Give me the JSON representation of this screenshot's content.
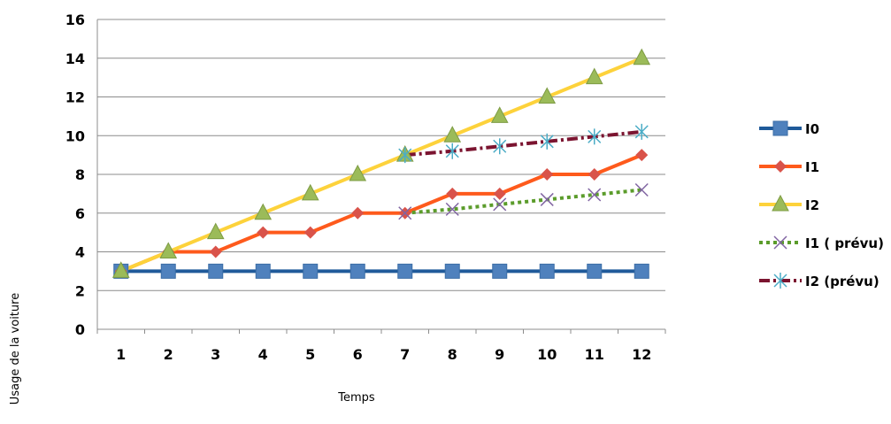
{
  "chart_data": {
    "type": "line",
    "title": "",
    "xlabel": "Temps",
    "ylabel": "Usage de la voiture",
    "ylim": [
      0,
      16
    ],
    "yticks": [
      "0",
      "2",
      "4",
      "6",
      "8",
      "10",
      "12",
      "14",
      "16"
    ],
    "categories": [
      "1",
      "2",
      "3",
      "4",
      "5",
      "6",
      "7",
      "8",
      "9",
      "10",
      "11",
      "12"
    ],
    "grid": "horizontal",
    "legend_position": "right",
    "series": [
      {
        "name": "I0",
        "color": "#1f5a9a",
        "marker_color": "#4f81bd",
        "marker": "square",
        "line_style": "solid",
        "x": [
          1,
          2,
          3,
          4,
          5,
          6,
          7,
          8,
          9,
          10,
          11,
          12
        ],
        "values": [
          3,
          3,
          3,
          3,
          3,
          3,
          3,
          3,
          3,
          3,
          3,
          3
        ]
      },
      {
        "name": "I1",
        "color": "#fe5a1c",
        "marker_color": "#d9534a",
        "marker": "diamond",
        "line_style": "solid",
        "x": [
          1,
          2,
          3,
          4,
          5,
          6,
          7,
          8,
          9,
          10,
          11,
          12
        ],
        "values": [
          3,
          4,
          4,
          5,
          5,
          6,
          6,
          7,
          7,
          8,
          8,
          9
        ]
      },
      {
        "name": "I2",
        "color": "#fdd23b",
        "marker_color": "#9bbb59",
        "marker": "triangle",
        "line_style": "solid",
        "x": [
          1,
          2,
          3,
          4,
          5,
          6,
          7,
          8,
          9,
          10,
          11,
          12
        ],
        "values": [
          3,
          4,
          5,
          6,
          7,
          8,
          9,
          10,
          11,
          12,
          13,
          14
        ]
      },
      {
        "name": "I1 ( prévu)",
        "color": "#5b9c2b",
        "marker_color": "#8064a2",
        "marker": "x",
        "line_style": "dotted",
        "x": [
          7,
          8,
          9,
          10,
          11,
          12
        ],
        "values": [
          6,
          6.2,
          6.45,
          6.7,
          6.95,
          7.2
        ]
      },
      {
        "name": "I2 (prévu)",
        "color": "#7b1430",
        "marker_color": "#4bacc6",
        "marker": "asterisk",
        "line_style": "dashdot",
        "x": [
          7,
          8,
          9,
          10,
          11,
          12
        ],
        "values": [
          9,
          9.2,
          9.45,
          9.7,
          9.95,
          10.2
        ]
      }
    ]
  }
}
